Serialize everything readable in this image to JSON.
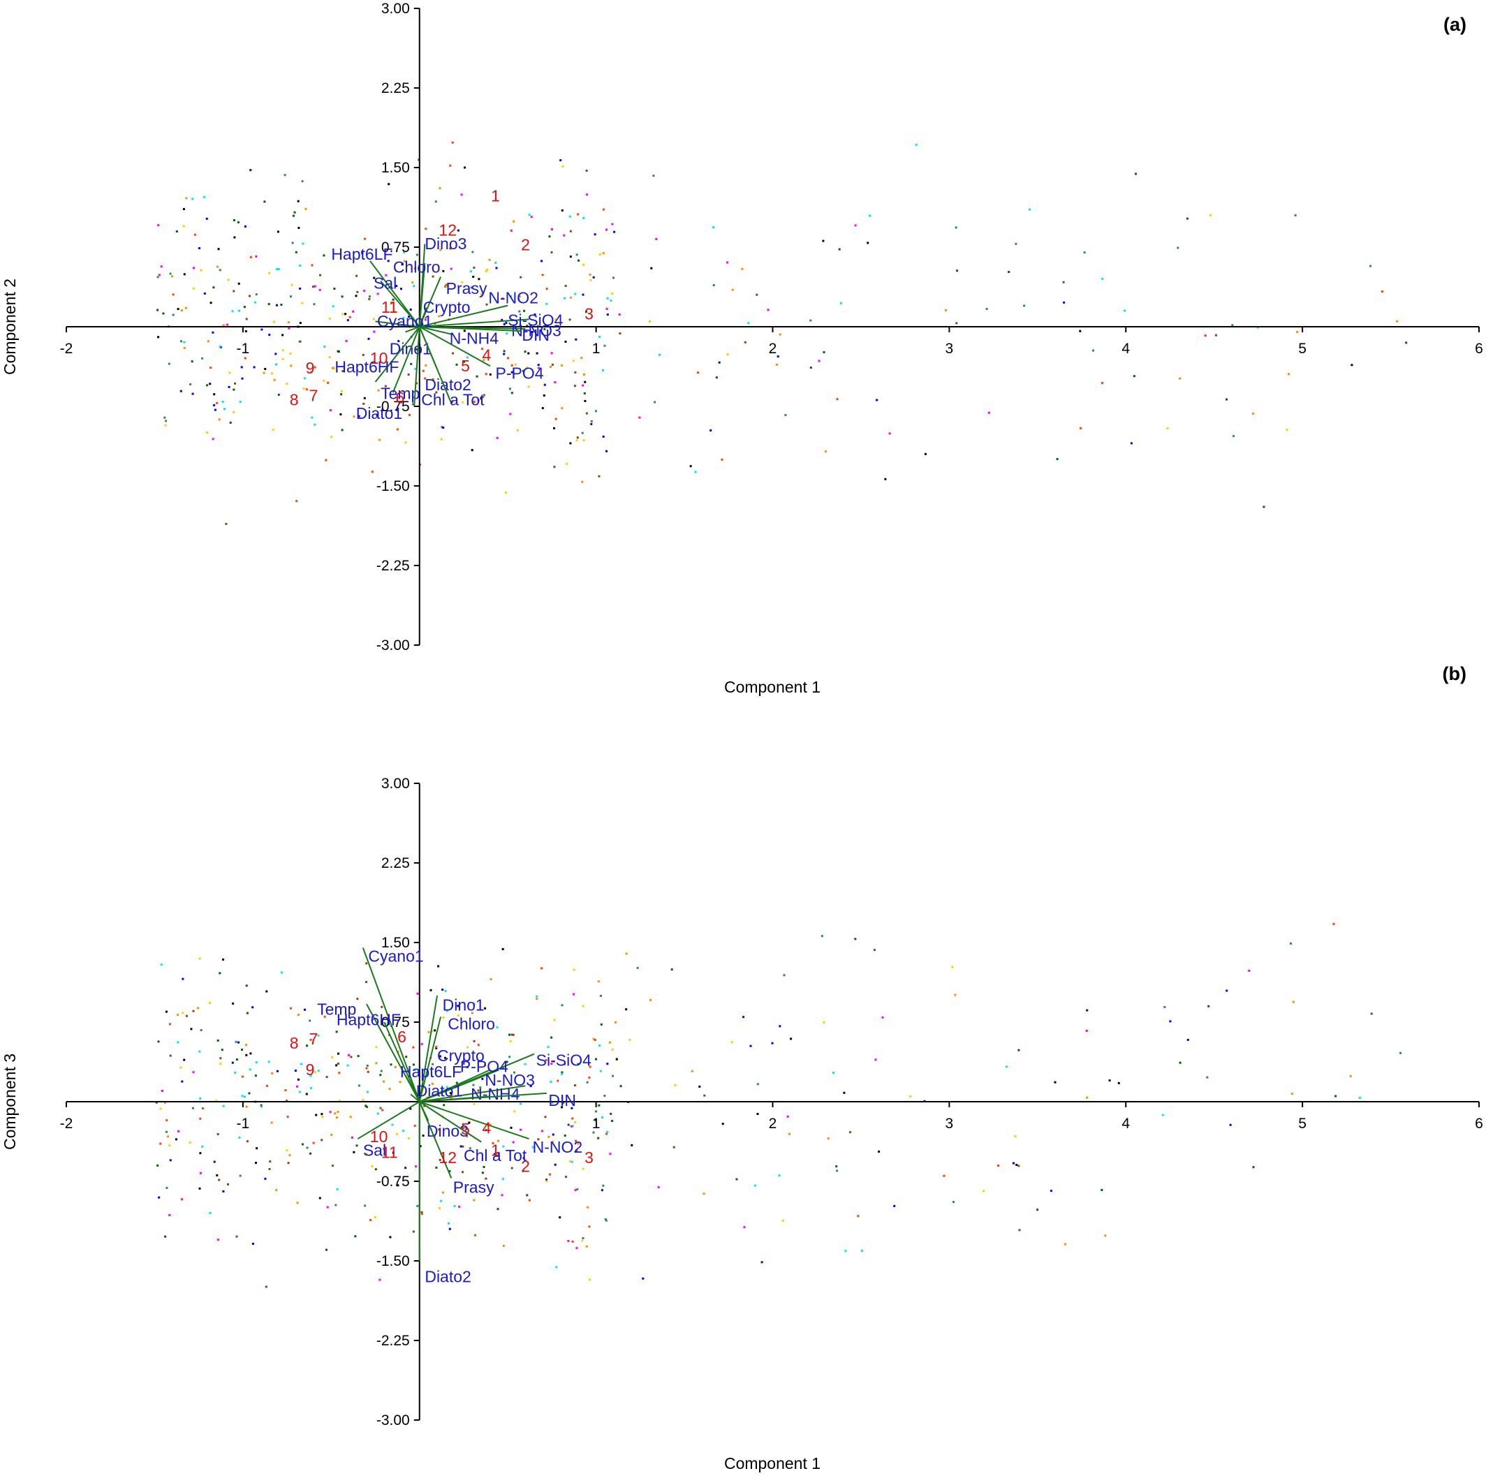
{
  "chart_data": [
    {
      "type": "scatter",
      "subtype": "pca-biplot",
      "panel_label": "(a)",
      "xlabel": "Component 1",
      "ylabel": "Component 2",
      "xlim": [
        -2,
        6
      ],
      "ylim": [
        -3,
        3
      ],
      "x_ticks": [
        "-2",
        "-1",
        "1",
        "2",
        "3",
        "4",
        "5",
        "6"
      ],
      "y_ticks": [
        "3.00",
        "2.25",
        "1.50",
        "0.75",
        "-0.75",
        "-1.50",
        "-2.25",
        "-3.00"
      ],
      "grid": false,
      "colors": {
        "axis": "#000000",
        "vector": "#1a7a1a",
        "variable_text": "#1a1acc",
        "month_text": "#dd1111"
      },
      "vectors": [
        {
          "name": "Hapt6LF",
          "x": -0.28,
          "y": 0.62,
          "lx": -0.5,
          "ly": 0.67
        },
        {
          "name": "Dino3",
          "x": 0.03,
          "y": 0.78,
          "lx": 0.03,
          "ly": 0.77
        },
        {
          "name": "Chloro",
          "x": 0.03,
          "y": 0.6,
          "lx": -0.15,
          "ly": 0.55
        },
        {
          "name": "Sal",
          "x": -0.22,
          "y": 0.43,
          "lx": -0.26,
          "ly": 0.4
        },
        {
          "name": "Prasy",
          "x": 0.12,
          "y": 0.47,
          "lx": 0.15,
          "ly": 0.35
        },
        {
          "name": "N-NO2",
          "x": 0.5,
          "y": 0.2,
          "lx": 0.39,
          "ly": 0.26
        },
        {
          "name": "Crypto",
          "x": 0.04,
          "y": 0.18,
          "lx": 0.02,
          "ly": 0.17
        },
        {
          "name": "Si-SiO4",
          "x": 0.62,
          "y": 0.07,
          "lx": 0.5,
          "ly": 0.05
        },
        {
          "name": "N-NO3",
          "x": 0.6,
          "y": -0.02,
          "lx": 0.52,
          "ly": -0.05
        },
        {
          "name": "DIN",
          "x": 0.58,
          "y": -0.04,
          "lx": 0.58,
          "ly": -0.09
        },
        {
          "name": "Cyano1",
          "x": -0.25,
          "y": 0.05,
          "lx": -0.24,
          "ly": 0.04
        },
        {
          "name": "N-NH4",
          "x": 0.18,
          "y": -0.07,
          "lx": 0.17,
          "ly": -0.12
        },
        {
          "name": "Dino1",
          "x": -0.08,
          "y": -0.05,
          "lx": -0.17,
          "ly": -0.22
        },
        {
          "name": "P-PO4",
          "x": 0.4,
          "y": -0.37,
          "lx": 0.43,
          "ly": -0.45
        },
        {
          "name": "Hapt6HF",
          "x": -0.25,
          "y": -0.52,
          "lx": -0.48,
          "ly": -0.39
        },
        {
          "name": "Diato2",
          "x": 0.1,
          "y": -0.4,
          "lx": 0.03,
          "ly": -0.56
        },
        {
          "name": "Temp",
          "x": -0.15,
          "y": -0.62,
          "lx": -0.22,
          "ly": -0.64
        },
        {
          "name": "Chl a Tot",
          "x": 0.18,
          "y": -0.72,
          "lx": 0.01,
          "ly": -0.7
        },
        {
          "name": "Diato1",
          "x": -0.03,
          "y": -0.75,
          "lx": -0.36,
          "ly": -0.83
        }
      ],
      "months": [
        {
          "label": "1",
          "x": 0.43,
          "y": 1.22
        },
        {
          "label": "12",
          "x": 0.16,
          "y": 0.9
        },
        {
          "label": "2",
          "x": 0.6,
          "y": 0.76
        },
        {
          "label": "3",
          "x": 0.96,
          "y": 0.11
        },
        {
          "label": "11",
          "x": -0.17,
          "y": 0.17
        },
        {
          "label": "10",
          "x": -0.23,
          "y": -0.31
        },
        {
          "label": "9",
          "x": -0.62,
          "y": -0.4
        },
        {
          "label": "4",
          "x": 0.38,
          "y": -0.28
        },
        {
          "label": "5",
          "x": 0.26,
          "y": -0.38
        },
        {
          "label": "6",
          "x": -0.11,
          "y": -0.68
        },
        {
          "label": "7",
          "x": -0.6,
          "y": -0.66
        },
        {
          "label": "8",
          "x": -0.71,
          "y": -0.7
        }
      ]
    },
    {
      "type": "scatter",
      "subtype": "pca-biplot",
      "panel_label": "(b)",
      "xlabel": "Component 1",
      "ylabel": "Component 3",
      "xlim": [
        -2,
        6
      ],
      "ylim": [
        -3,
        3
      ],
      "x_ticks": [
        "-2",
        "-1",
        "1",
        "2",
        "3",
        "4",
        "5",
        "6"
      ],
      "y_ticks": [
        "3.00",
        "2.25",
        "1.50",
        "0.75",
        "-0.75",
        "-1.50",
        "-2.25",
        "-3.00"
      ],
      "grid": false,
      "colors": {
        "axis": "#000000",
        "vector": "#1a7a1a",
        "variable_text": "#1a1acc",
        "month_text": "#dd1111"
      },
      "vectors": [
        {
          "name": "Cyano1",
          "x": -0.32,
          "y": 1.45,
          "lx": -0.29,
          "ly": 1.36
        },
        {
          "name": "Dino1",
          "x": 0.1,
          "y": 1.0,
          "lx": 0.13,
          "ly": 0.9
        },
        {
          "name": "Temp",
          "x": -0.3,
          "y": 0.92,
          "lx": -0.58,
          "ly": 0.86
        },
        {
          "name": "Hapt6HF",
          "x": -0.2,
          "y": 0.75,
          "lx": -0.47,
          "ly": 0.76
        },
        {
          "name": "Chloro",
          "x": 0.12,
          "y": 0.8,
          "lx": 0.16,
          "ly": 0.72
        },
        {
          "name": "Crypto",
          "x": 0.45,
          "y": 0.3,
          "lx": 0.1,
          "ly": 0.42
        },
        {
          "name": "Si-SiO4",
          "x": 0.65,
          "y": 0.45,
          "lx": 0.66,
          "ly": 0.38
        },
        {
          "name": "P-PO4",
          "x": 0.4,
          "y": 0.3,
          "lx": 0.23,
          "ly": 0.32
        },
        {
          "name": "Hapt6LF",
          "x": -0.08,
          "y": 0.25,
          "lx": -0.11,
          "ly": 0.27
        },
        {
          "name": "N-NO3",
          "x": 0.6,
          "y": 0.15,
          "lx": 0.37,
          "ly": 0.19
        },
        {
          "name": "Diato1",
          "x": -0.05,
          "y": 0.07,
          "lx": -0.02,
          "ly": 0.09
        },
        {
          "name": "N-NH4",
          "x": 0.4,
          "y": 0.05,
          "lx": 0.29,
          "ly": 0.06
        },
        {
          "name": "DIN",
          "x": 0.72,
          "y": 0.08,
          "lx": 0.73,
          "ly": 0.0
        },
        {
          "name": "Dino3",
          "x": 0.05,
          "y": -0.18,
          "lx": 0.04,
          "ly": -0.29
        },
        {
          "name": "Sal",
          "x": -0.35,
          "y": -0.35,
          "lx": -0.32,
          "ly": -0.47
        },
        {
          "name": "N-NO2",
          "x": 0.62,
          "y": -0.35,
          "lx": 0.64,
          "ly": -0.44
        },
        {
          "name": "Chl a Tot",
          "x": 0.35,
          "y": -0.38,
          "lx": 0.25,
          "ly": -0.52
        },
        {
          "name": "Prasy",
          "x": 0.18,
          "y": -0.72,
          "lx": 0.19,
          "ly": -0.82
        },
        {
          "name": "Diato2",
          "x": 0.0,
          "y": -1.5,
          "lx": 0.03,
          "ly": -1.66
        }
      ],
      "months": [
        {
          "label": "6",
          "x": -0.1,
          "y": 0.6
        },
        {
          "label": "7",
          "x": -0.6,
          "y": 0.58
        },
        {
          "label": "8",
          "x": -0.71,
          "y": 0.54
        },
        {
          "label": "9",
          "x": -0.62,
          "y": 0.29
        },
        {
          "label": "10",
          "x": -0.23,
          "y": -0.34
        },
        {
          "label": "11",
          "x": -0.17,
          "y": -0.49
        },
        {
          "label": "12",
          "x": 0.16,
          "y": -0.54
        },
        {
          "label": "4",
          "x": 0.38,
          "y": -0.26
        },
        {
          "label": "5",
          "x": 0.26,
          "y": -0.27
        },
        {
          "label": "1",
          "x": 0.43,
          "y": -0.47
        },
        {
          "label": "2",
          "x": 0.6,
          "y": -0.62
        },
        {
          "label": "3",
          "x": 0.96,
          "y": -0.54
        }
      ]
    }
  ]
}
